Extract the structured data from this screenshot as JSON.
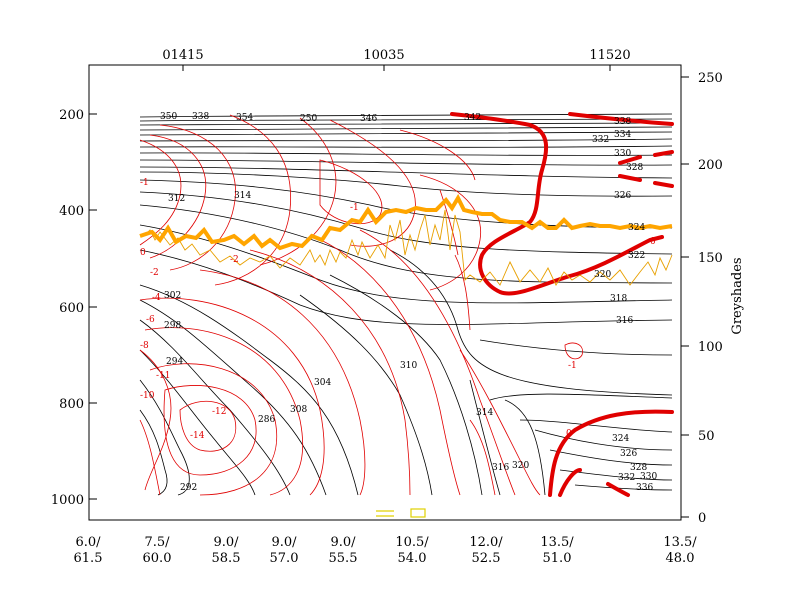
{
  "chart_data": {
    "type": "contour",
    "top_labels": [
      "01415",
      "10035",
      "11520"
    ],
    "left_axis": {
      "ticks": [
        "200",
        "400",
        "600",
        "800",
        "1000"
      ],
      "range": [
        100,
        1050
      ]
    },
    "right_axis": {
      "label": "Greyshades",
      "ticks": [
        "0",
        "50",
        "100",
        "150",
        "200",
        "250"
      ],
      "range": [
        0,
        255
      ]
    },
    "bottom_labels": [
      {
        "l1": "6.0/",
        "l2": "61.5"
      },
      {
        "l1": "7.5/",
        "l2": "60.0"
      },
      {
        "l1": "9.0/",
        "l2": "58.5"
      },
      {
        "l1": "9.0/",
        "l2": "57.0"
      },
      {
        "l1": "9.0/",
        "l2": "55.5"
      },
      {
        "l1": "10.5/",
        "l2": "54.0"
      },
      {
        "l1": "12.0/",
        "l2": "52.5"
      },
      {
        "l1": "13.5/",
        "l2": "51.0"
      },
      {
        "l1": "13.5/",
        "l2": "48.0"
      }
    ],
    "black_contour_labels": [
      "350",
      "338",
      "354",
      "250",
      "346",
      "342",
      "338",
      "334",
      "332",
      "330",
      "328",
      "326",
      "324",
      "322",
      "320",
      "318",
      "316",
      "314",
      "312",
      "302",
      "298",
      "294",
      "292",
      "286",
      "308",
      "304",
      "310",
      "314",
      "316",
      "320",
      "324",
      "326",
      "328",
      "330",
      "332",
      "336"
    ],
    "red_contour_labels": [
      "-1",
      "0",
      "-2",
      "-4",
      "-6",
      "-8",
      "-10",
      "-11",
      "-12",
      "-14",
      "-1",
      "0",
      "-2",
      "-1",
      "0"
    ],
    "colors": {
      "black": "#000000",
      "red": "#e00000",
      "orange": "#ffa500",
      "thin_orange": "#e8a000",
      "yellow": "#e0d000"
    }
  }
}
